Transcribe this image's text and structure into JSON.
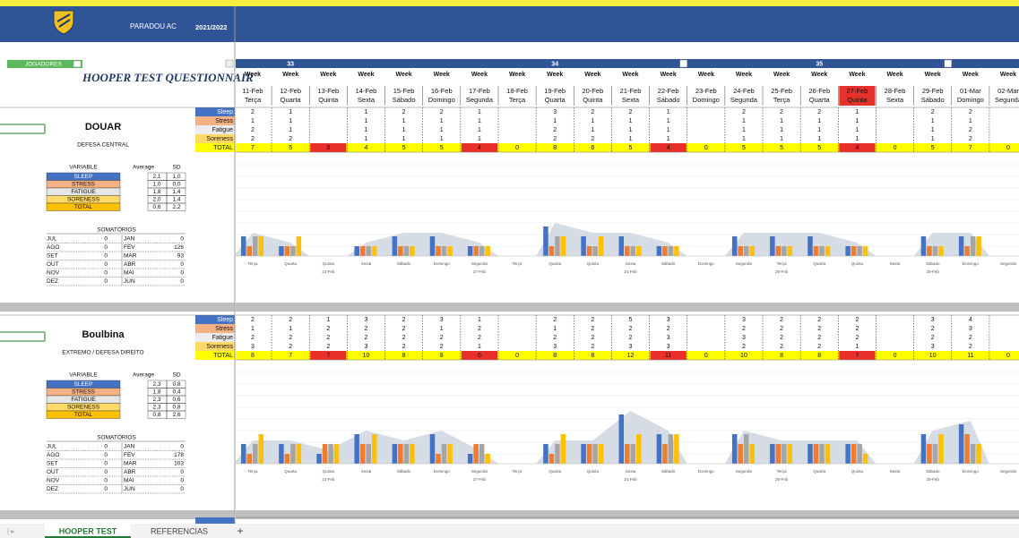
{
  "header": {
    "club": "PARADOU AC",
    "season": "2021/2022",
    "players_button": "JOGADORES",
    "title": "HOOPER TEST QUESTIONNAIR"
  },
  "calendar": {
    "week_label": "Week",
    "week_numbers": [
      null,
      33,
      null,
      null,
      null,
      null,
      null,
      null,
      34,
      null,
      null,
      null,
      null,
      null,
      null,
      35,
      null,
      null,
      null,
      null,
      null
    ],
    "dates": [
      "11-Feb",
      "12-Feb",
      "13-Feb",
      "14-Feb",
      "15-Feb",
      "16-Feb",
      "17-Feb",
      "18-Feb",
      "19-Feb",
      "20-Feb",
      "21-Feb",
      "22-Feb",
      "23-Feb",
      "24-Feb",
      "25-Feb",
      "26-Feb",
      "27-Feb",
      "28-Feb",
      "29-Feb",
      "01-Mar",
      "02-Mar"
    ],
    "weekdays": [
      "Terça",
      "Quarta",
      "Quinta",
      "Sexta",
      "Sábado",
      "Domingo",
      "Segunda",
      "Terça",
      "Quarta",
      "Quinta",
      "Sexta",
      "Sábado",
      "Domingo",
      "Segunda",
      "Terça",
      "Quarta",
      "Quinta",
      "Sexta",
      "Sábado",
      "Domingo",
      "Segunda"
    ],
    "date_fills": [
      null,
      null,
      null,
      null,
      null,
      null,
      null,
      null,
      null,
      null,
      null,
      null,
      null,
      null,
      null,
      null,
      "#e8302a",
      null,
      null,
      null,
      null
    ]
  },
  "variables": [
    "Sleep",
    "Stress",
    "Fatigue",
    "Soreness"
  ],
  "variable_colors": [
    "#4472c4",
    "#ed7d31",
    "#a5a5a5",
    "#ffc000"
  ],
  "total_label": "TOTAL",
  "stats_header": [
    "VARIABLE",
    "Average",
    "SD"
  ],
  "sums_title": "SOMATÓRIOS",
  "players": [
    {
      "name": "DOUAR",
      "position": "DEFESA CENTRAL",
      "rows": [
        [
          2,
          1,
          null,
          1,
          2,
          2,
          1,
          null,
          3,
          2,
          2,
          1,
          null,
          2,
          2,
          2,
          1,
          null,
          2,
          2,
          null
        ],
        [
          1,
          1,
          null,
          1,
          1,
          1,
          1,
          null,
          1,
          1,
          1,
          1,
          null,
          1,
          1,
          1,
          1,
          null,
          1,
          1,
          null
        ],
        [
          2,
          1,
          null,
          1,
          1,
          1,
          1,
          null,
          2,
          1,
          1,
          1,
          null,
          1,
          1,
          1,
          1,
          null,
          1,
          2,
          null
        ],
        [
          2,
          2,
          null,
          1,
          1,
          1,
          1,
          null,
          2,
          2,
          1,
          1,
          null,
          1,
          1,
          1,
          1,
          null,
          1,
          2,
          null
        ]
      ],
      "totals": [
        7,
        5,
        0,
        4,
        5,
        5,
        4,
        0,
        8,
        6,
        5,
        4,
        0,
        5,
        5,
        5,
        4,
        0,
        5,
        7,
        0
      ],
      "total_fills": [
        "#ffff00",
        "#ffff00",
        "#e8302a",
        "#ffff00",
        "#ffff00",
        "#ffff00",
        "#e8302a",
        "#ffff00",
        "#ffff00",
        "#ffff00",
        "#ffff00",
        "#e8302a",
        "#ffff00",
        "#ffff00",
        "#ffff00",
        "#ffff00",
        "#e8302a",
        "#ffff00",
        "#ffff00",
        "#ffff00",
        "#ffff00"
      ],
      "stats": [
        [
          "SLEEP",
          "2,1",
          "1,0"
        ],
        [
          "STRESS",
          "1,0",
          "0,0"
        ],
        [
          "FATIGUE",
          "1,8",
          "1,4"
        ],
        [
          "SORENESS",
          "2,0",
          "1,4"
        ],
        [
          "TOTAL",
          "0,6",
          "2,2"
        ]
      ],
      "sums": [
        [
          "JUL",
          0,
          "JAN",
          0
        ],
        [
          "AGO",
          0,
          "FEV",
          126
        ],
        [
          "SET",
          0,
          "MAR",
          93
        ],
        [
          "OUT",
          0,
          "ABR",
          0
        ],
        [
          "NOV",
          0,
          "MAI",
          0
        ],
        [
          "DEZ",
          0,
          "JUN",
          0
        ]
      ]
    },
    {
      "name": "Boulbina",
      "position": "EXTREMO / DEFESA DIREITO",
      "rows": [
        [
          2,
          2,
          1,
          3,
          2,
          3,
          1,
          null,
          2,
          2,
          5,
          3,
          null,
          3,
          2,
          2,
          2,
          null,
          3,
          4,
          null
        ],
        [
          1,
          1,
          2,
          2,
          2,
          1,
          2,
          null,
          1,
          2,
          2,
          2,
          null,
          2,
          2,
          2,
          2,
          null,
          2,
          3,
          null
        ],
        [
          2,
          2,
          2,
          2,
          2,
          2,
          2,
          null,
          2,
          2,
          2,
          3,
          null,
          3,
          2,
          2,
          2,
          null,
          2,
          2,
          null
        ],
        [
          3,
          2,
          2,
          3,
          2,
          2,
          1,
          null,
          3,
          2,
          3,
          3,
          null,
          2,
          2,
          2,
          1,
          null,
          3,
          2,
          null
        ]
      ],
      "totals": [
        8,
        7,
        7,
        10,
        8,
        8,
        6,
        0,
        8,
        8,
        12,
        11,
        0,
        10,
        8,
        8,
        7,
        0,
        10,
        11,
        0
      ],
      "total_fills": [
        "#ffff00",
        "#ffff00",
        "#e8302a",
        "#ffff00",
        "#ffff00",
        "#ffff00",
        "#e8302a",
        "#ffff00",
        "#ffff00",
        "#ffff00",
        "#ffff00",
        "#e8302a",
        "#ffff00",
        "#ffff00",
        "#ffff00",
        "#ffff00",
        "#e8302a",
        "#ffff00",
        "#ffff00",
        "#ffff00",
        "#ffff00"
      ],
      "stats": [
        [
          "SLEEP",
          "2,3",
          "0,8"
        ],
        [
          "STRESS",
          "1,8",
          "0,4"
        ],
        [
          "FATIGUE",
          "2,3",
          "0,6"
        ],
        [
          "SORENESS",
          "2,3",
          "0,8"
        ],
        [
          "TOTAL",
          "0,8",
          "2,6"
        ]
      ],
      "sums": [
        [
          "JUL",
          0,
          "JAN",
          0
        ],
        [
          "AGO",
          0,
          "FEV",
          178
        ],
        [
          "SET",
          0,
          "MAR",
          103
        ],
        [
          "OUT",
          0,
          "ABR",
          0
        ],
        [
          "NOV",
          0,
          "MAI",
          0
        ],
        [
          "DEZ",
          0,
          "JUN",
          0
        ]
      ]
    }
  ],
  "tabs": [
    "HOOPER TEST",
    "REFERENCIAS",
    "+"
  ]
}
